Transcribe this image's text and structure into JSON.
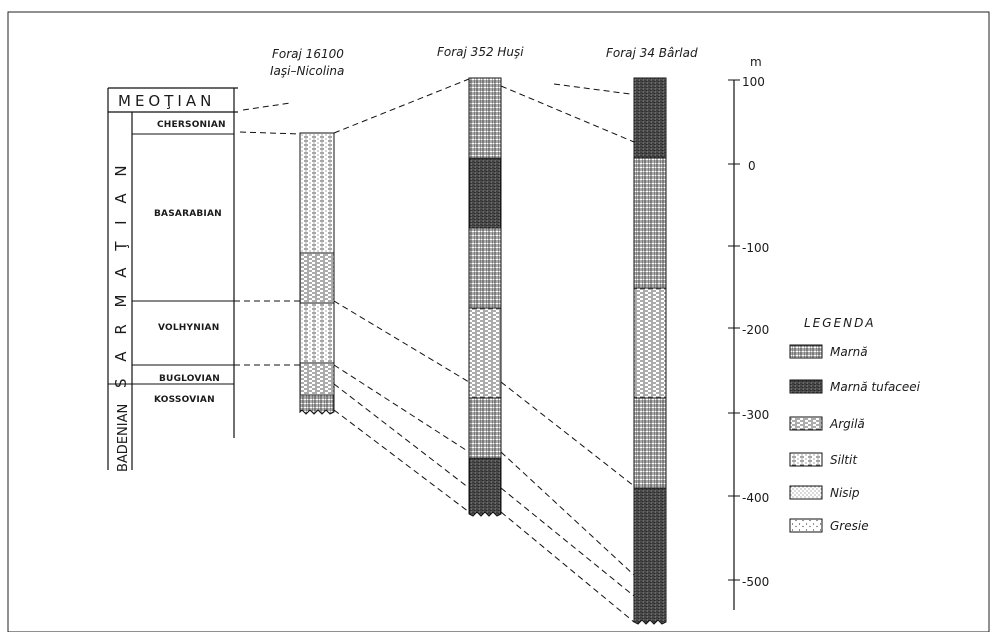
{
  "wells": [
    {
      "id": "w1",
      "title_line1": "Foraj 16100",
      "title_line2": "Iaşi–Nicolina"
    },
    {
      "id": "w2",
      "title_line1": "Foraj 352 Huşi",
      "title_line2": ""
    },
    {
      "id": "w3",
      "title_line1": "Foraj 34 Bârlad",
      "title_line2": ""
    }
  ],
  "stratigraphy": {
    "top_unit": "MEOŢIAN",
    "main_unit": "S A R M A Ţ I A N",
    "bottom_unit": "BADENIAN",
    "stages": [
      "CHERSONIAN",
      "BASARABIAN",
      "VOLHYNIAN",
      "BUGLOVIAN",
      "KOSSOVIAN"
    ]
  },
  "depth_axis": {
    "unit": "m",
    "ticks": [
      "100",
      "0",
      "-100",
      "-200",
      "-300",
      "-400",
      "-500"
    ]
  },
  "legend": {
    "title": "LEGENDA",
    "items": [
      {
        "label": "Marnă",
        "pattern": "marna"
      },
      {
        "label": "Marnă tufaceei",
        "pattern": "marna-tufacee"
      },
      {
        "label": "Argilă",
        "pattern": "argila"
      },
      {
        "label": "Siltit",
        "pattern": "siltit"
      },
      {
        "label": "Nisip",
        "pattern": "nisip"
      },
      {
        "label": "Gresie",
        "pattern": "gresie"
      }
    ]
  }
}
